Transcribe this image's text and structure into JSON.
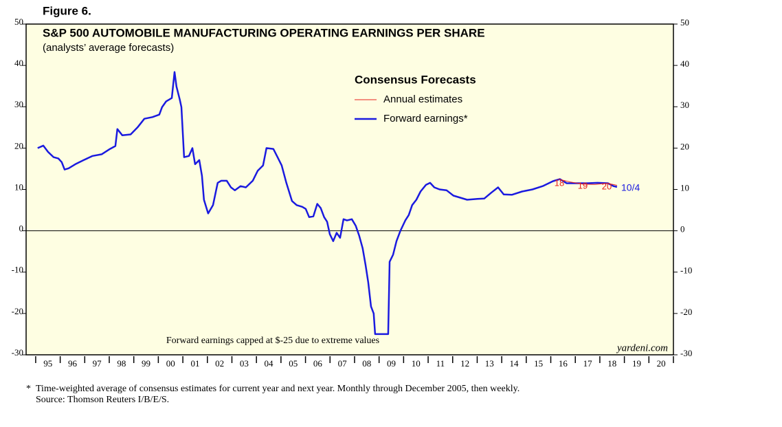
{
  "chart_data": {
    "type": "line",
    "figure_label": "Figure 6.",
    "title": "S&P 500 AUTOMOBILE MANUFACTURING OPERATING EARNINGS PER SHARE",
    "subtitle": "(analysts’ average forecasts)",
    "legend_title": "Consensus Forecasts",
    "note": "Forward earnings capped at $-25 due to extreme values",
    "watermark": "yardeni.com",
    "footnote_marker": "*",
    "footnote": "Time-weighted average of consensus estimates for current year and next year. Monthly through December 2005, then weekly.",
    "source": "Source: Thomson Reuters I/B/E/S.",
    "annotations": [
      "18",
      "19",
      "20"
    ],
    "last_label": "10/4",
    "xlim": [
      1994.61,
      2021.0
    ],
    "ylim": [
      -30,
      50
    ],
    "yticks": [
      -30,
      -20,
      -10,
      0,
      10,
      20,
      30,
      40,
      50
    ],
    "xticks": [
      {
        "value": 1995.5,
        "label": "95"
      },
      {
        "value": 1996.5,
        "label": "96"
      },
      {
        "value": 1997.5,
        "label": "97"
      },
      {
        "value": 1998.5,
        "label": "98"
      },
      {
        "value": 1999.5,
        "label": "99"
      },
      {
        "value": 2000.5,
        "label": "00"
      },
      {
        "value": 2001.5,
        "label": "01"
      },
      {
        "value": 2002.5,
        "label": "02"
      },
      {
        "value": 2003.5,
        "label": "03"
      },
      {
        "value": 2004.5,
        "label": "04"
      },
      {
        "value": 2005.5,
        "label": "05"
      },
      {
        "value": 2006.5,
        "label": "06"
      },
      {
        "value": 2007.5,
        "label": "07"
      },
      {
        "value": 2008.5,
        "label": "08"
      },
      {
        "value": 2009.5,
        "label": "09"
      },
      {
        "value": 2010.5,
        "label": "10"
      },
      {
        "value": 2011.5,
        "label": "11"
      },
      {
        "value": 2012.5,
        "label": "12"
      },
      {
        "value": 2013.5,
        "label": "13"
      },
      {
        "value": 2014.5,
        "label": "14"
      },
      {
        "value": 2015.5,
        "label": "15"
      },
      {
        "value": 2016.5,
        "label": "16"
      },
      {
        "value": 2017.5,
        "label": "17"
      },
      {
        "value": 2018.5,
        "label": "18"
      },
      {
        "value": 2019.5,
        "label": "19"
      },
      {
        "value": 2020.5,
        "label": "20"
      }
    ],
    "x_minor_ticks": [
      1995,
      1996,
      1997,
      1998,
      1999,
      2000,
      2001,
      2002,
      2003,
      2004,
      2005,
      2006,
      2007,
      2008,
      2009,
      2010,
      2011,
      2012,
      2013,
      2014,
      2015,
      2016,
      2017,
      2018,
      2019,
      2020,
      2021
    ],
    "zero_line": 0,
    "series": [
      {
        "name": "Annual estimates",
        "color": "#e8211c",
        "width": 1,
        "x": [
          2016.3,
          2016.8,
          2017.3,
          2017.8,
          2018.3,
          2018.7
        ],
        "values": [
          12.5,
          11.8,
          11.3,
          11.2,
          11.5,
          11.0
        ]
      },
      {
        "name": "Forward earnings*",
        "color": "#1a1adf",
        "width": 2.5,
        "x": [
          1995.08,
          1995.31,
          1995.5,
          1995.73,
          1995.92,
          1996.06,
          1996.18,
          1996.34,
          1996.62,
          1996.96,
          1997.32,
          1997.69,
          1998.03,
          1998.25,
          1998.33,
          1998.53,
          1998.87,
          1999.15,
          1999.43,
          1999.76,
          2000.04,
          2000.15,
          2000.32,
          2000.55,
          2000.66,
          2000.74,
          2000.88,
          2000.94,
          2001.05,
          2001.25,
          2001.39,
          2001.5,
          2001.67,
          2001.78,
          2001.86,
          2002.03,
          2002.23,
          2002.42,
          2002.56,
          2002.79,
          2002.96,
          2003.12,
          2003.35,
          2003.57,
          2003.85,
          2004.05,
          2004.27,
          2004.41,
          2004.69,
          2004.86,
          2005.03,
          2005.22,
          2005.45,
          2005.64,
          2005.87,
          2006.01,
          2006.15,
          2006.32,
          2006.48,
          2006.62,
          2006.76,
          2006.88,
          2006.99,
          2007.13,
          2007.27,
          2007.41,
          2007.55,
          2007.69,
          2007.89,
          2008.05,
          2008.19,
          2008.33,
          2008.45,
          2008.56,
          2008.67,
          2008.78,
          2008.84,
          2009.37,
          2009.43,
          2009.57,
          2009.71,
          2009.87,
          2010.07,
          2010.21,
          2010.35,
          2010.52,
          2010.69,
          2010.91,
          2011.08,
          2011.25,
          2011.47,
          2011.75,
          2012.03,
          2012.31,
          2012.59,
          2013.01,
          2013.29,
          2013.57,
          2013.85,
          2014.08,
          2014.41,
          2014.83,
          2015.25,
          2015.67,
          2016.09,
          2016.37,
          2016.65,
          2017.07,
          2017.49,
          2017.91,
          2018.33,
          2018.56,
          2018.7
        ],
        "values": [
          20.0,
          20.6,
          19.1,
          17.8,
          17.5,
          16.6,
          14.8,
          15.1,
          16.1,
          17.1,
          18.1,
          18.5,
          19.8,
          20.5,
          24.6,
          23.1,
          23.3,
          25.0,
          27.1,
          27.5,
          28.1,
          29.9,
          31.3,
          32.1,
          38.4,
          34.9,
          31.6,
          29.9,
          17.8,
          18.1,
          20.0,
          16.1,
          17.1,
          13.3,
          7.5,
          4.2,
          6.2,
          11.6,
          12.1,
          12.1,
          10.5,
          9.8,
          10.8,
          10.5,
          12.1,
          14.5,
          15.8,
          20.0,
          19.8,
          17.8,
          15.8,
          11.6,
          7.2,
          6.2,
          5.8,
          5.3,
          3.3,
          3.5,
          6.5,
          5.5,
          3.3,
          2.2,
          -0.8,
          -2.5,
          -0.5,
          -1.7,
          2.8,
          2.5,
          2.8,
          1.2,
          -1.2,
          -4.2,
          -8.3,
          -12.5,
          -18.3,
          -20.0,
          -25,
          -25,
          -7.5,
          -5.8,
          -2.5,
          0,
          2.5,
          3.8,
          6.2,
          7.5,
          9.5,
          11.1,
          11.6,
          10.5,
          10.0,
          9.8,
          8.5,
          8.0,
          7.5,
          7.7,
          7.8,
          9.2,
          10.5,
          8.8,
          8.7,
          9.5,
          10.0,
          10.8,
          12.0,
          12.5,
          11.5,
          11.5,
          11.5,
          11.6,
          11.5,
          10.8,
          10.6
        ]
      }
    ]
  }
}
